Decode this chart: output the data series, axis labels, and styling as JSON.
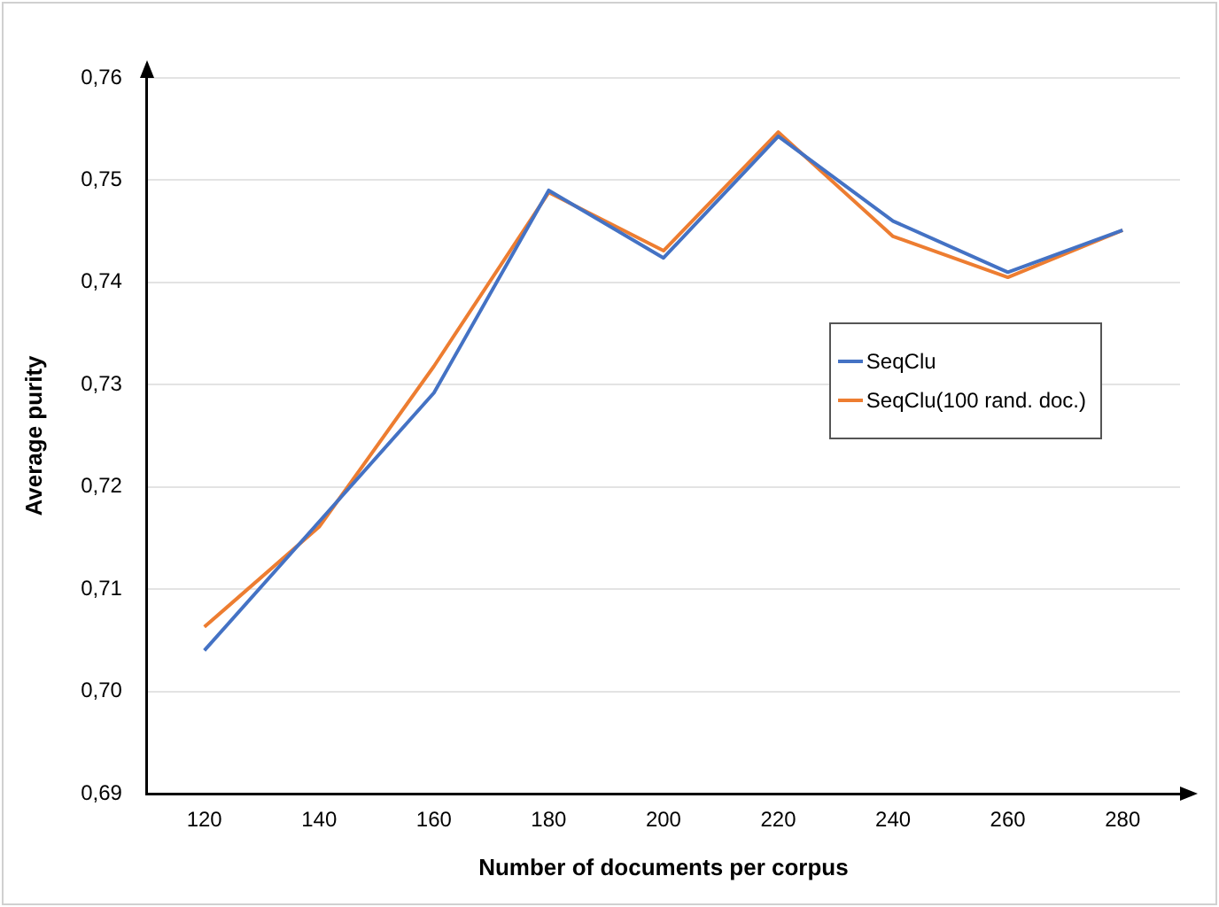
{
  "chart_data": {
    "type": "line",
    "xlabel": "Number of documents per corpus",
    "ylabel": "Average purity",
    "categories": [
      "120",
      "140",
      "160",
      "180",
      "200",
      "220",
      "240",
      "260",
      "280"
    ],
    "series": [
      {
        "name": "SeqClu",
        "color": "#4472c4",
        "values": [
          0.704,
          0.7166,
          0.7292,
          0.749,
          0.7424,
          0.7543,
          0.746,
          0.741,
          0.7451
        ]
      },
      {
        "name": "SeqClu(100 rand. doc.)",
        "color": "#ed7d31",
        "values": [
          0.7063,
          0.7161,
          0.7318,
          0.7488,
          0.7431,
          0.7547,
          0.7445,
          0.7405,
          0.7451
        ]
      }
    ],
    "ylim": [
      0.69,
      0.76
    ],
    "yticks": [
      {
        "value": 0.69,
        "label": "0,69"
      },
      {
        "value": 0.7,
        "label": "0,70"
      },
      {
        "value": 0.71,
        "label": "0,71"
      },
      {
        "value": 0.72,
        "label": "0,72"
      },
      {
        "value": 0.73,
        "label": "0,73"
      },
      {
        "value": 0.74,
        "label": "0,74"
      },
      {
        "value": 0.75,
        "label": "0,75"
      },
      {
        "value": 0.76,
        "label": "0,76"
      }
    ],
    "grid": "y",
    "legend": "right",
    "marker": "none",
    "line_style": "solid"
  }
}
